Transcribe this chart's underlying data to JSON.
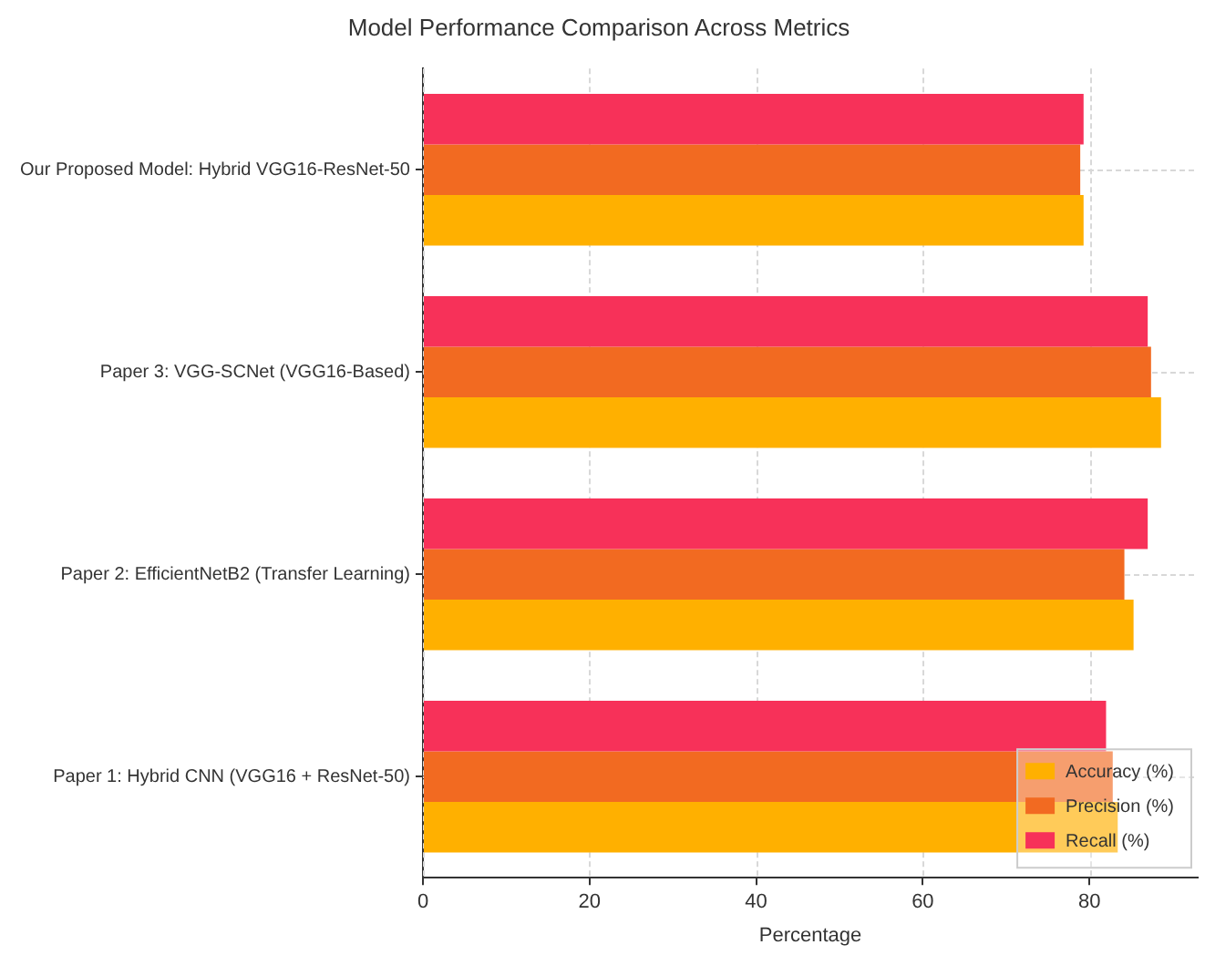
{
  "chart_data": {
    "type": "bar",
    "orientation": "horizontal",
    "title": "Model Performance Comparison Across Metrics",
    "xlabel": "Percentage",
    "categories": [
      "Our Proposed Model: Hybrid VGG16-ResNet-50",
      "Paper 3: VGG-SCNet (VGG16-Based)",
      "Paper 2: EfficientNetB2 (Transfer Learning)",
      "Paper 1: Hybrid CNN (VGG16 + ResNet-50)"
    ],
    "series": [
      {
        "name": "Accuracy (%)",
        "color": "#ffb000",
        "values": [
          79.3,
          88.6,
          85.3,
          83.4
        ]
      },
      {
        "name": "Precision (%)",
        "color": "#f26a21",
        "values": [
          78.9,
          87.4,
          84.2,
          82.8
        ]
      },
      {
        "name": "Recall (%)",
        "color": "#f73159",
        "values": [
          79.3,
          87.0,
          87.0,
          82.0
        ]
      }
    ],
    "xlim": [
      0,
      93
    ],
    "xticks": [
      0,
      20,
      40,
      60,
      80
    ],
    "grid": true,
    "legend": "bottom right"
  }
}
